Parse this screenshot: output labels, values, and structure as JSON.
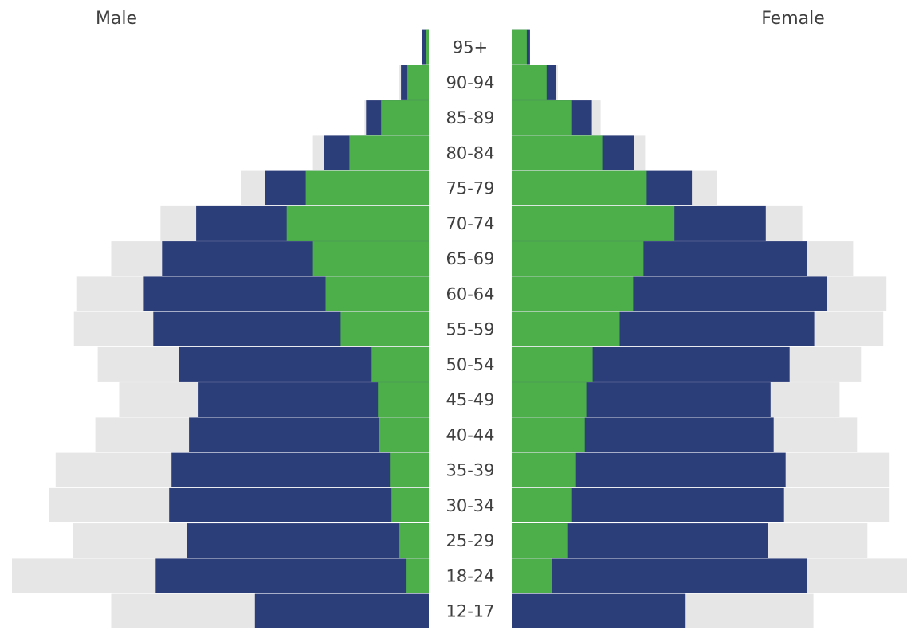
{
  "chart_data": {
    "type": "bar",
    "orientation": "horizontal",
    "chart_kind": "population-pyramid",
    "title": "",
    "xlabel": "",
    "ylabel": "",
    "grid": false,
    "legend": "none",
    "side_labels": {
      "left": "Male",
      "right": "Female"
    },
    "categories": [
      "95+",
      "90-94",
      "85-89",
      "80-84",
      "75-79",
      "70-74",
      "65-69",
      "60-64",
      "55-59",
      "50-54",
      "45-49",
      "40-44",
      "35-39",
      "30-34",
      "25-29",
      "18-24",
      "12-17"
    ],
    "scale_max": 527,
    "series": [
      {
        "side": "male",
        "layer": "background",
        "color": "#e6e6e6",
        "values": [
          9,
          37,
          81,
          146,
          236,
          338,
          400,
          444,
          447,
          417,
          390,
          420,
          470,
          478,
          448,
          525,
          400
        ]
      },
      {
        "side": "male",
        "layer": "middle",
        "color": "#2b3e7a",
        "values": [
          9,
          35,
          79,
          132,
          206,
          293,
          336,
          359,
          347,
          315,
          290,
          302,
          324,
          327,
          305,
          344,
          219
        ]
      },
      {
        "side": "male",
        "layer": "foreground",
        "color": "#4caf4a",
        "values": [
          3,
          27,
          60,
          100,
          155,
          179,
          146,
          130,
          111,
          72,
          64,
          63,
          49,
          47,
          37,
          28,
          0
        ]
      },
      {
        "side": "female",
        "layer": "background",
        "color": "#e6e6e6",
        "values": [
          23,
          58,
          112,
          168,
          258,
          366,
          430,
          472,
          468,
          440,
          413,
          435,
          476,
          476,
          448,
          498,
          380
        ]
      },
      {
        "side": "female",
        "layer": "middle",
        "color": "#2b3e7a",
        "values": [
          23,
          56,
          101,
          154,
          227,
          320,
          372,
          397,
          381,
          350,
          326,
          330,
          345,
          343,
          323,
          372,
          219
        ]
      },
      {
        "side": "female",
        "layer": "foreground",
        "color": "#4caf4a",
        "values": [
          19,
          44,
          76,
          114,
          170,
          205,
          166,
          153,
          136,
          102,
          94,
          92,
          81,
          76,
          71,
          51,
          0
        ]
      }
    ]
  }
}
